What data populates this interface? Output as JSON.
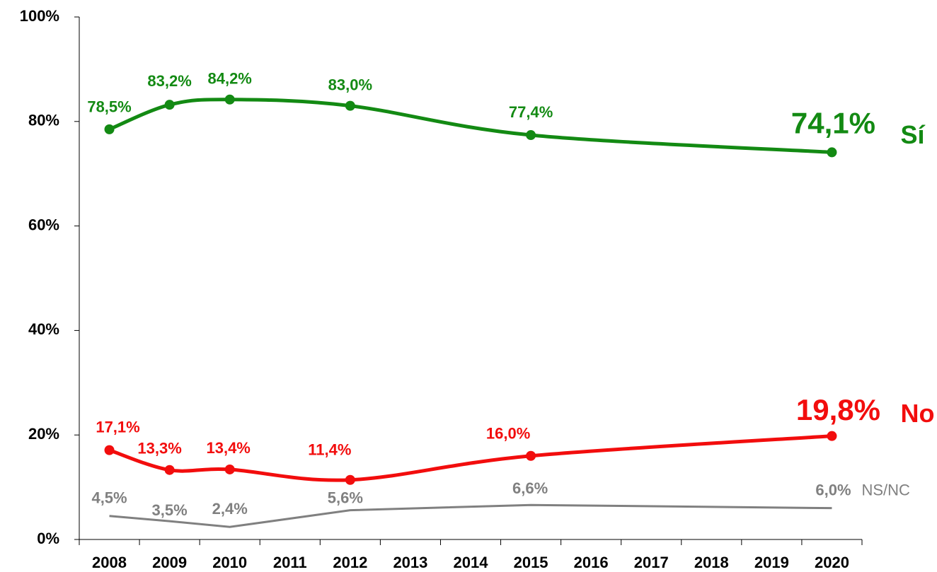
{
  "chart_data": {
    "type": "line",
    "x": [
      2008,
      2009,
      2010,
      2012,
      2015,
      2020
    ],
    "xlim": [
      2007.5,
      2020.5
    ],
    "xticks": [
      2008,
      2009,
      2010,
      2011,
      2012,
      2013,
      2014,
      2015,
      2016,
      2017,
      2018,
      2019,
      2020
    ],
    "ylim": [
      0,
      100
    ],
    "yticks": [
      {
        "value": 0,
        "label": "0%"
      },
      {
        "value": 20,
        "label": "20%"
      },
      {
        "value": 40,
        "label": "40%"
      },
      {
        "value": 60,
        "label": "60%"
      },
      {
        "value": 80,
        "label": "80%"
      },
      {
        "value": 100,
        "label": "100%"
      }
    ],
    "series": [
      {
        "name": "Sí",
        "color": "#138a13",
        "smooth": true,
        "markers": true,
        "values": [
          78.5,
          83.2,
          84.2,
          83.0,
          77.4,
          74.1
        ],
        "value_labels": [
          "78,5%",
          "83,2%",
          "84,2%",
          "83,0%",
          "77,4%",
          "74,1%"
        ]
      },
      {
        "name": "No",
        "color": "#f20d0d",
        "smooth": true,
        "markers": true,
        "values": [
          17.1,
          13.3,
          13.4,
          11.4,
          16.0,
          19.8
        ],
        "value_labels": [
          "17,1%",
          "13,3%",
          "13,4%",
          "11,4%",
          "16,0%",
          "19,8%"
        ]
      },
      {
        "name": "NS/NC",
        "color": "#808080",
        "smooth": false,
        "markers": false,
        "values": [
          4.5,
          3.5,
          2.4,
          5.6,
          6.6,
          6.0
        ],
        "value_labels": [
          "4,5%",
          "3,5%",
          "2,4%",
          "5,6%",
          "6,6%",
          "6,0%"
        ]
      }
    ]
  }
}
